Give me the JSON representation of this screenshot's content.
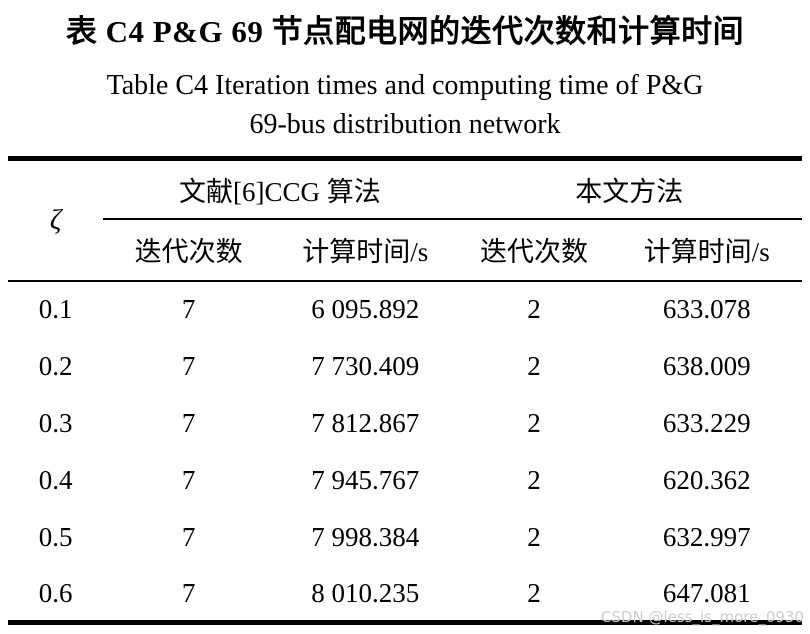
{
  "titles": {
    "zh": "表 C4 P&G 69 节点配电网的迭代次数和计算时间",
    "en_line1": "Table C4 Iteration times and computing time of P&G",
    "en_line2": "69-bus distribution network"
  },
  "colors": {
    "text": "#000000",
    "background": "#ffffff",
    "rule": "#000000",
    "watermark": "#cdcdcd"
  },
  "watermark": "CSDN @less_is_more_0930",
  "chart_data": {
    "type": "table",
    "corner_label": "ζ",
    "column_groups": [
      {
        "label": "文献[6]CCG 算法",
        "span": 2
      },
      {
        "label": "本文方法",
        "span": 2
      }
    ],
    "subheaders": [
      "迭代次数",
      "计算时间/s",
      "迭代次数",
      "计算时间/s"
    ],
    "rows": [
      {
        "zeta": "0.1",
        "ccg_iter": "7",
        "ccg_time": "6 095.892",
        "prop_iter": "2",
        "prop_time": "633.078"
      },
      {
        "zeta": "0.2",
        "ccg_iter": "7",
        "ccg_time": "7 730.409",
        "prop_iter": "2",
        "prop_time": "638.009"
      },
      {
        "zeta": "0.3",
        "ccg_iter": "7",
        "ccg_time": "7 812.867",
        "prop_iter": "2",
        "prop_time": "633.229"
      },
      {
        "zeta": "0.4",
        "ccg_iter": "7",
        "ccg_time": "7 945.767",
        "prop_iter": "2",
        "prop_time": "620.362"
      },
      {
        "zeta": "0.5",
        "ccg_iter": "7",
        "ccg_time": "7 998.384",
        "prop_iter": "2",
        "prop_time": "632.997"
      },
      {
        "zeta": "0.6",
        "ccg_iter": "7",
        "ccg_time": "8 010.235",
        "prop_iter": "2",
        "prop_time": "647.081"
      }
    ]
  }
}
